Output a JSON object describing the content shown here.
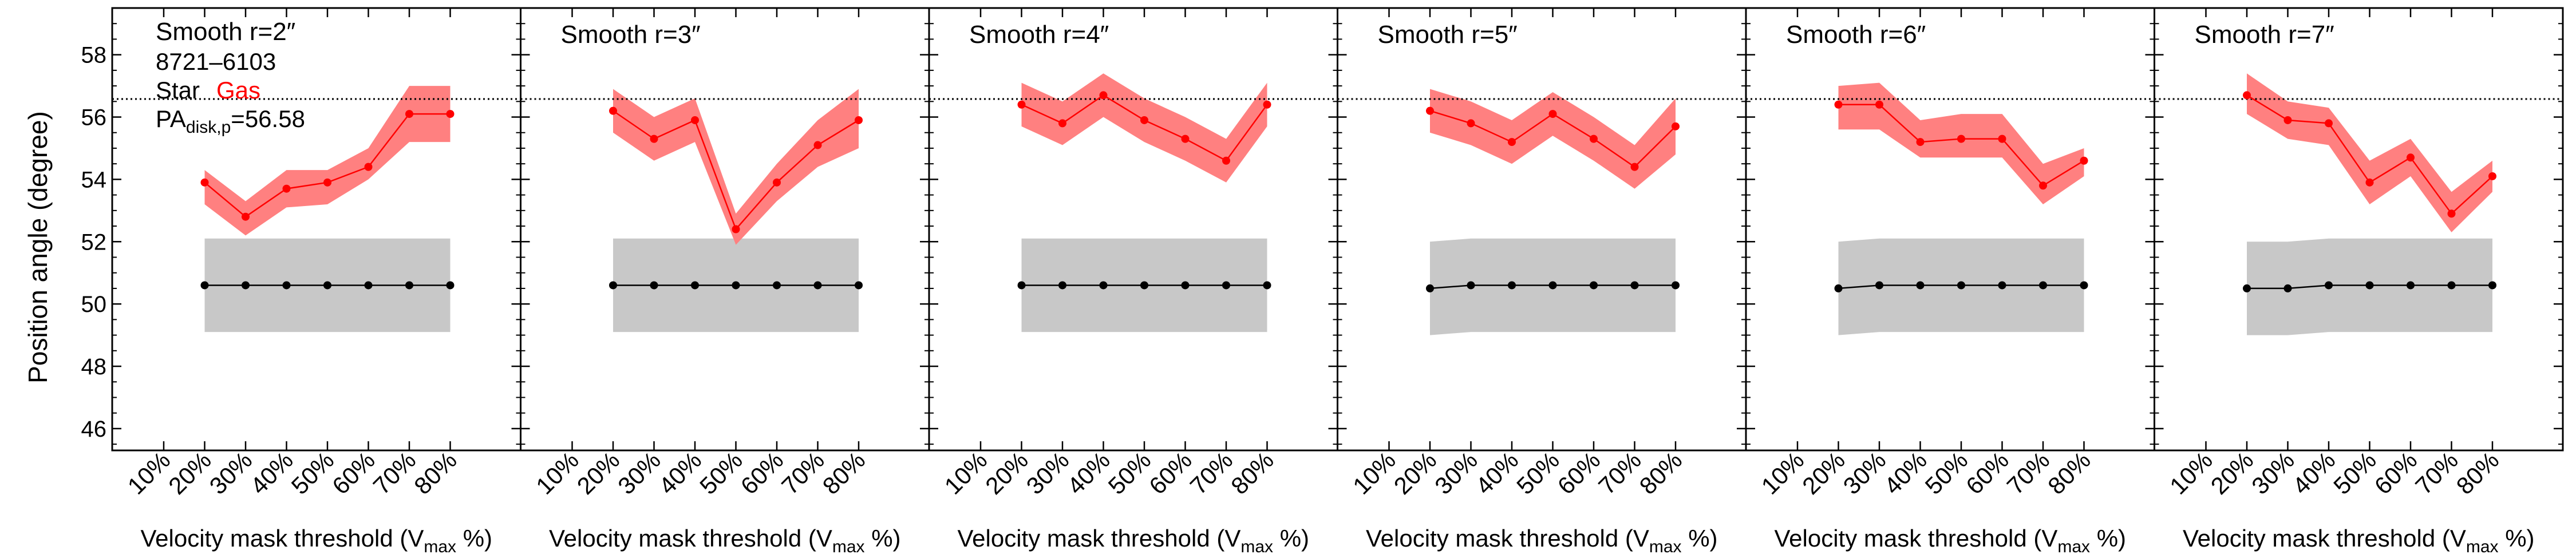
{
  "figure": {
    "ylabel": "Position angle (degree)",
    "xlabel_prefix": "Velocity mask threshold (V",
    "xlabel_sub": "max",
    "xlabel_suffix": " %)"
  },
  "legend": {
    "id_text": "8721–6103",
    "star_label": "Star",
    "gas_label": "Gas",
    "pa_prefix": "PA",
    "pa_sub": "disk,p",
    "pa_suffix": "=56.58"
  },
  "colors": {
    "gas": "#ff0000",
    "gas_band": "#ff8080",
    "star": "#000000",
    "star_band": "#c8c8c8",
    "reference_line": "#000000"
  },
  "chart_data": [
    {
      "type": "line",
      "title": "Smooth r=2″",
      "categories": [
        "10%",
        "20%",
        "30%",
        "40%",
        "50%",
        "60%",
        "70%",
        "80%"
      ],
      "ylim": [
        45.3,
        59.5
      ],
      "yticks": [
        46,
        48,
        50,
        52,
        54,
        56,
        58
      ],
      "reference_line": 56.58,
      "grid": false,
      "series": [
        {
          "name": "Gas",
          "x": [
            "20%",
            "30%",
            "40%",
            "50%",
            "60%",
            "70%",
            "80%"
          ],
          "values": [
            53.9,
            52.8,
            53.7,
            53.9,
            54.4,
            56.1,
            56.1
          ],
          "lower": [
            53.2,
            52.2,
            53.1,
            53.2,
            54.0,
            55.2,
            55.2
          ],
          "upper": [
            54.3,
            53.3,
            54.3,
            54.3,
            55.0,
            57.0,
            57.0
          ]
        },
        {
          "name": "Star",
          "x": [
            "20%",
            "30%",
            "40%",
            "50%",
            "60%",
            "70%",
            "80%"
          ],
          "values": [
            50.6,
            50.6,
            50.6,
            50.6,
            50.6,
            50.6,
            50.6
          ],
          "lower": [
            49.1,
            49.1,
            49.1,
            49.1,
            49.1,
            49.1,
            49.1
          ],
          "upper": [
            52.1,
            52.1,
            52.1,
            52.1,
            52.1,
            52.1,
            52.1
          ]
        }
      ]
    },
    {
      "type": "line",
      "title": "Smooth r=3″",
      "categories": [
        "10%",
        "20%",
        "30%",
        "40%",
        "50%",
        "60%",
        "70%",
        "80%"
      ],
      "ylim": [
        45.3,
        59.5
      ],
      "yticks": [
        46,
        48,
        50,
        52,
        54,
        56,
        58
      ],
      "reference_line": 56.58,
      "grid": false,
      "series": [
        {
          "name": "Gas",
          "x": [
            "20%",
            "30%",
            "40%",
            "50%",
            "60%",
            "70%",
            "80%"
          ],
          "values": [
            56.2,
            55.3,
            55.9,
            52.4,
            53.9,
            55.1,
            55.9
          ],
          "lower": [
            55.5,
            54.6,
            55.2,
            51.9,
            53.3,
            54.4,
            55.0
          ],
          "upper": [
            56.9,
            56.0,
            56.6,
            52.9,
            54.5,
            55.9,
            56.9
          ]
        },
        {
          "name": "Star",
          "x": [
            "20%",
            "30%",
            "40%",
            "50%",
            "60%",
            "70%",
            "80%"
          ],
          "values": [
            50.6,
            50.6,
            50.6,
            50.6,
            50.6,
            50.6,
            50.6
          ],
          "lower": [
            49.1,
            49.1,
            49.1,
            49.1,
            49.1,
            49.1,
            49.1
          ],
          "upper": [
            52.1,
            52.1,
            52.1,
            52.1,
            52.1,
            52.1,
            52.1
          ]
        }
      ]
    },
    {
      "type": "line",
      "title": "Smooth r=4″",
      "categories": [
        "10%",
        "20%",
        "30%",
        "40%",
        "50%",
        "60%",
        "70%",
        "80%"
      ],
      "ylim": [
        45.3,
        59.5
      ],
      "yticks": [
        46,
        48,
        50,
        52,
        54,
        56,
        58
      ],
      "reference_line": 56.58,
      "grid": false,
      "series": [
        {
          "name": "Gas",
          "x": [
            "20%",
            "30%",
            "40%",
            "50%",
            "60%",
            "70%",
            "80%"
          ],
          "values": [
            56.4,
            55.8,
            56.7,
            55.9,
            55.3,
            54.6,
            56.4
          ],
          "lower": [
            55.7,
            55.1,
            56.0,
            55.2,
            54.6,
            53.9,
            55.7
          ],
          "upper": [
            57.1,
            56.5,
            57.4,
            56.6,
            56.0,
            55.3,
            57.1
          ]
        },
        {
          "name": "Star",
          "x": [
            "20%",
            "30%",
            "40%",
            "50%",
            "60%",
            "70%",
            "80%"
          ],
          "values": [
            50.6,
            50.6,
            50.6,
            50.6,
            50.6,
            50.6,
            50.6
          ],
          "lower": [
            49.1,
            49.1,
            49.1,
            49.1,
            49.1,
            49.1,
            49.1
          ],
          "upper": [
            52.1,
            52.1,
            52.1,
            52.1,
            52.1,
            52.1,
            52.1
          ]
        }
      ]
    },
    {
      "type": "line",
      "title": "Smooth r=5″",
      "categories": [
        "10%",
        "20%",
        "30%",
        "40%",
        "50%",
        "60%",
        "70%",
        "80%"
      ],
      "ylim": [
        45.3,
        59.5
      ],
      "yticks": [
        46,
        48,
        50,
        52,
        54,
        56,
        58
      ],
      "reference_line": 56.58,
      "grid": false,
      "series": [
        {
          "name": "Gas",
          "x": [
            "20%",
            "30%",
            "40%",
            "50%",
            "60%",
            "70%",
            "80%"
          ],
          "values": [
            56.2,
            55.8,
            55.2,
            56.1,
            55.3,
            54.4,
            55.7
          ],
          "lower": [
            55.5,
            55.1,
            54.5,
            55.4,
            54.6,
            53.7,
            54.8
          ],
          "upper": [
            56.9,
            56.5,
            55.9,
            56.8,
            56.0,
            55.1,
            56.6
          ]
        },
        {
          "name": "Star",
          "x": [
            "20%",
            "30%",
            "40%",
            "50%",
            "60%",
            "70%",
            "80%"
          ],
          "values": [
            50.5,
            50.6,
            50.6,
            50.6,
            50.6,
            50.6,
            50.6
          ],
          "lower": [
            49.0,
            49.1,
            49.1,
            49.1,
            49.1,
            49.1,
            49.1
          ],
          "upper": [
            52.0,
            52.1,
            52.1,
            52.1,
            52.1,
            52.1,
            52.1
          ]
        }
      ]
    },
    {
      "type": "line",
      "title": "Smooth r=6″",
      "categories": [
        "10%",
        "20%",
        "30%",
        "40%",
        "50%",
        "60%",
        "70%",
        "80%"
      ],
      "ylim": [
        45.3,
        59.5
      ],
      "yticks": [
        46,
        48,
        50,
        52,
        54,
        56,
        58
      ],
      "reference_line": 56.58,
      "grid": false,
      "series": [
        {
          "name": "Gas",
          "x": [
            "20%",
            "30%",
            "40%",
            "50%",
            "60%",
            "70%",
            "80%"
          ],
          "values": [
            56.4,
            56.4,
            55.2,
            55.3,
            55.3,
            53.8,
            54.6
          ],
          "lower": [
            55.6,
            55.6,
            54.7,
            54.7,
            54.7,
            53.2,
            54.1
          ],
          "upper": [
            57.0,
            57.1,
            55.9,
            56.1,
            56.1,
            54.5,
            55.0
          ]
        },
        {
          "name": "Star",
          "x": [
            "20%",
            "30%",
            "40%",
            "50%",
            "60%",
            "70%",
            "80%"
          ],
          "values": [
            50.5,
            50.6,
            50.6,
            50.6,
            50.6,
            50.6,
            50.6
          ],
          "lower": [
            49.0,
            49.1,
            49.1,
            49.1,
            49.1,
            49.1,
            49.1
          ],
          "upper": [
            52.0,
            52.1,
            52.1,
            52.1,
            52.1,
            52.1,
            52.1
          ]
        }
      ]
    },
    {
      "type": "line",
      "title": "Smooth r=7″",
      "categories": [
        "10%",
        "20%",
        "30%",
        "40%",
        "50%",
        "60%",
        "70%",
        "80%"
      ],
      "ylim": [
        45.3,
        59.5
      ],
      "yticks": [
        46,
        48,
        50,
        52,
        54,
        56,
        58
      ],
      "reference_line": 56.58,
      "grid": false,
      "series": [
        {
          "name": "Gas",
          "x": [
            "20%",
            "30%",
            "40%",
            "50%",
            "60%",
            "70%",
            "80%"
          ],
          "values": [
            56.7,
            55.9,
            55.8,
            53.9,
            54.7,
            52.9,
            54.1
          ],
          "lower": [
            56.1,
            55.3,
            55.1,
            53.2,
            54.1,
            52.3,
            53.6
          ],
          "upper": [
            57.4,
            56.5,
            56.3,
            54.6,
            55.3,
            53.6,
            54.6
          ]
        },
        {
          "name": "Star",
          "x": [
            "20%",
            "30%",
            "40%",
            "50%",
            "60%",
            "70%",
            "80%"
          ],
          "values": [
            50.5,
            50.5,
            50.6,
            50.6,
            50.6,
            50.6,
            50.6
          ],
          "lower": [
            49.0,
            49.0,
            49.1,
            49.1,
            49.1,
            49.1,
            49.1
          ],
          "upper": [
            52.0,
            52.0,
            52.1,
            52.1,
            52.1,
            52.1,
            52.1
          ]
        }
      ]
    }
  ]
}
